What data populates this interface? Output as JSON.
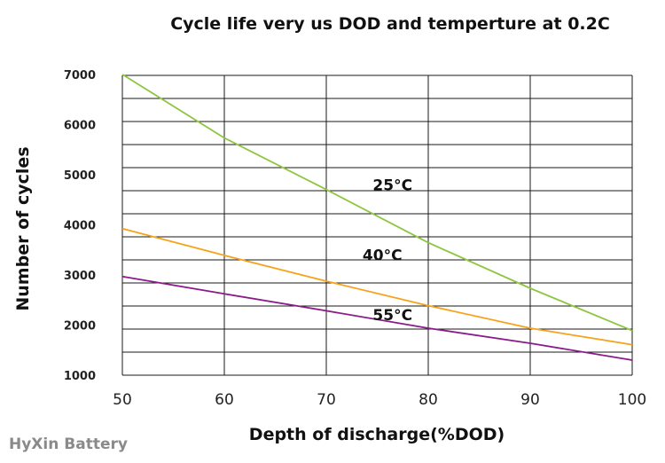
{
  "chart_data": {
    "type": "line",
    "title": "Cycle life very us DOD and temperture at 0.2C",
    "xlabel": "Depth of discharge(%DOD)",
    "ylabel": "Number of cycles",
    "xlim": [
      50,
      100
    ],
    "ylim": [
      1000,
      7000
    ],
    "x_ticks": [
      "50",
      "60",
      "70",
      "80",
      "90",
      "100"
    ],
    "y_ticks": [
      "1000",
      "2000",
      "3000",
      "4000",
      "5000",
      "6000",
      "7000"
    ],
    "grid": true,
    "series": [
      {
        "name": "25°C",
        "color": "#8dc63f",
        "points": [
          [
            50,
            7400
          ],
          [
            60,
            6050
          ],
          [
            70,
            4950
          ],
          [
            80,
            3820
          ],
          [
            90,
            2850
          ],
          [
            100,
            1950
          ]
        ]
      },
      {
        "name": "40°C",
        "color": "#f7a21b",
        "points": [
          [
            50,
            4120
          ],
          [
            60,
            3550
          ],
          [
            70,
            3000
          ],
          [
            80,
            2480
          ],
          [
            90,
            2000
          ],
          [
            100,
            1650
          ]
        ]
      },
      {
        "name": "55°C",
        "color": "#8b1a8b",
        "points": [
          [
            50,
            3100
          ],
          [
            60,
            2730
          ],
          [
            70,
            2370
          ],
          [
            80,
            2000
          ],
          [
            90,
            1680
          ],
          [
            100,
            1320
          ]
        ]
      }
    ]
  },
  "watermark": "HyXin Battery"
}
